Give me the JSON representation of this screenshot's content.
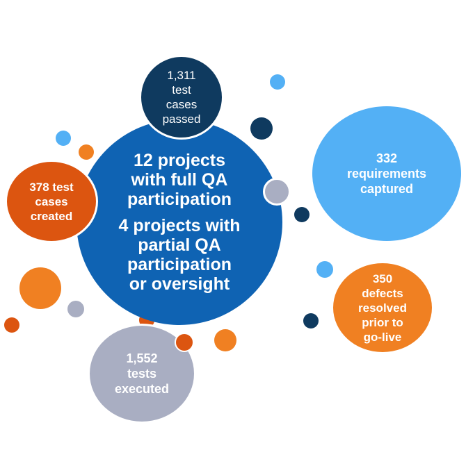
{
  "colors": {
    "navy": "#0f3a5f",
    "royal": "#0f63b3",
    "sky": "#53b0f5",
    "orange": "#f08022",
    "rust": "#dc5510",
    "grey": "#a9aec2"
  },
  "bubbles": {
    "center": {
      "block1": [
        "12 projects",
        "with full QA",
        "participation"
      ],
      "block2": [
        "4 projects with",
        "partial QA",
        "participation",
        "or oversight"
      ]
    },
    "passed": [
      "1,311",
      "test",
      "cases",
      "passed"
    ],
    "created": [
      "378 test",
      "cases",
      "created"
    ],
    "requirements": [
      "332",
      "requirements",
      "captured"
    ],
    "defects": [
      "350",
      "defects",
      "resolved",
      "prior to",
      "go-live"
    ],
    "executed": [
      "1,552",
      "tests",
      "executed"
    ]
  }
}
